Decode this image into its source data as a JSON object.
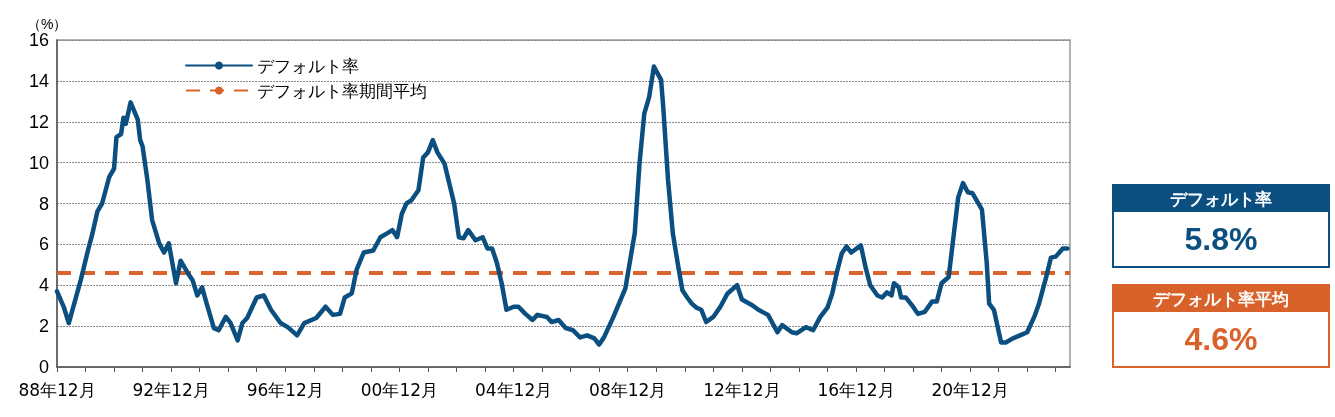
{
  "chart_data": {
    "type": "line",
    "ylabel": "（%）",
    "x": [
      "1988-12",
      "1989-03",
      "1989-05",
      "1989-10",
      "1990-01",
      "1990-03",
      "1990-05",
      "1990-07",
      "1990-10",
      "1990-12",
      "1991-01",
      "1991-03",
      "1991-04",
      "1991-05",
      "1991-07",
      "1991-10",
      "1991-11",
      "1991-12",
      "1992-02",
      "1992-04",
      "1992-07",
      "1992-09",
      "1992-11",
      "1993-02",
      "1993-04",
      "1993-07",
      "1993-09",
      "1993-11",
      "1994-01",
      "1994-03",
      "1994-06",
      "1994-08",
      "1994-11",
      "1995-01",
      "1995-04",
      "1995-06",
      "1995-08",
      "1995-12",
      "1996-03",
      "1996-06",
      "1996-10",
      "1997-01",
      "1997-05",
      "1997-08",
      "1998-01",
      "1998-05",
      "1998-08",
      "1998-11",
      "1999-01",
      "1999-04",
      "1999-06",
      "1999-09",
      "2000-01",
      "2000-04",
      "2000-07",
      "2000-09",
      "2000-11",
      "2001-01",
      "2001-03",
      "2001-05",
      "2001-08",
      "2001-10",
      "2001-12",
      "2002-02",
      "2002-04",
      "2002-07",
      "2002-11",
      "2003-01",
      "2003-03",
      "2003-05",
      "2003-08",
      "2003-11",
      "2004-01",
      "2004-03",
      "2004-05",
      "2004-07",
      "2004-09",
      "2004-12",
      "2005-02",
      "2005-05",
      "2005-08",
      "2005-10",
      "2006-02",
      "2006-04",
      "2006-07",
      "2006-10",
      "2007-01",
      "2007-04",
      "2007-07",
      "2007-10",
      "2007-12",
      "2008-02",
      "2008-06",
      "2008-11",
      "2009-03",
      "2009-05",
      "2009-07",
      "2009-09",
      "2009-11",
      "2010-02",
      "2010-03",
      "2010-05",
      "2010-07",
      "2010-09",
      "2010-11",
      "2011-01",
      "2011-03",
      "2011-05",
      "2011-07",
      "2011-09",
      "2011-12",
      "2012-03",
      "2012-06",
      "2012-10",
      "2012-12",
      "2013-04",
      "2013-07",
      "2013-11",
      "2014-03",
      "2014-05",
      "2014-09",
      "2014-11",
      "2015-03",
      "2015-06",
      "2015-09",
      "2015-12",
      "2016-02",
      "2016-04",
      "2016-06",
      "2016-08",
      "2016-10",
      "2017-02",
      "2017-04",
      "2017-06",
      "2017-09",
      "2017-11",
      "2018-01",
      "2018-03",
      "2018-04",
      "2018-06",
      "2018-07",
      "2018-09",
      "2018-12",
      "2019-02",
      "2019-05",
      "2019-08",
      "2019-10",
      "2019-12",
      "2020-03",
      "2020-05",
      "2020-07",
      "2020-09",
      "2020-11",
      "2021-01",
      "2021-05",
      "2021-07",
      "2021-08",
      "2021-10",
      "2022-01",
      "2022-03",
      "2022-06",
      "2022-09",
      "2022-12",
      "2023-03",
      "2023-05",
      "2023-08",
      "2023-10",
      "2023-12",
      "2024-03",
      "2024-05"
    ],
    "series": [
      {
        "name": "デフォルト率",
        "color": "#0b4f80",
        "values": [
          3.7,
          2.9,
          2.15,
          4.25,
          5.7,
          6.55,
          7.6,
          8.0,
          9.3,
          9.7,
          11.25,
          11.4,
          12.2,
          11.9,
          12.95,
          12.1,
          11.1,
          10.8,
          9.15,
          7.2,
          6.05,
          5.6,
          6.05,
          4.1,
          5.2,
          4.6,
          4.25,
          3.5,
          3.9,
          3.1,
          1.9,
          1.8,
          2.45,
          2.15,
          1.3,
          2.15,
          2.4,
          3.4,
          3.5,
          2.8,
          2.15,
          1.95,
          1.55,
          2.15,
          2.4,
          2.95,
          2.55,
          2.6,
          3.4,
          3.6,
          4.75,
          5.6,
          5.7,
          6.35,
          6.55,
          6.7,
          6.35,
          7.5,
          8.0,
          8.15,
          8.65,
          10.25,
          10.5,
          11.1,
          10.5,
          9.95,
          8.0,
          6.35,
          6.3,
          6.7,
          6.2,
          6.35,
          5.8,
          5.8,
          5.1,
          4.1,
          2.8,
          2.95,
          2.95,
          2.6,
          2.3,
          2.55,
          2.45,
          2.2,
          2.3,
          1.9,
          1.8,
          1.45,
          1.55,
          1.4,
          1.1,
          1.45,
          2.45,
          3.85,
          6.55,
          9.95,
          12.4,
          13.2,
          14.7,
          14.05,
          12.7,
          9.15,
          6.55,
          5.1,
          3.75,
          3.4,
          3.1,
          2.9,
          2.8,
          2.2,
          2.45,
          2.95,
          3.6,
          4.0,
          3.3,
          3.05,
          2.8,
          2.55,
          1.7,
          2.05,
          1.7,
          1.65,
          1.95,
          1.8,
          2.45,
          2.9,
          3.6,
          4.65,
          5.55,
          5.9,
          5.6,
          5.95,
          4.9,
          4.0,
          3.5,
          3.4,
          3.65,
          3.5,
          4.1,
          3.9,
          3.4,
          3.4,
          2.95,
          2.6,
          2.7,
          3.2,
          3.2,
          4.1,
          4.4,
          6.35,
          8.3,
          9.0,
          8.55,
          8.5,
          7.7,
          5.1,
          3.1,
          2.8,
          1.2,
          1.2,
          1.4,
          1.55,
          1.7,
          2.45,
          3.1,
          4.4,
          5.35,
          5.4,
          5.8,
          5.8
        ]
      }
    ],
    "ref_lines": [
      {
        "axis": "y",
        "value": 4.6,
        "label": "デフォルト率期間平均",
        "color": "#d9622b",
        "line_style": "dashed"
      }
    ],
    "xlim": [
      "1988-12",
      "2024-06"
    ],
    "xticks": [
      {
        "value": "1988-12",
        "label": "88年12月"
      },
      {
        "value": "1989-12",
        "label": null
      },
      {
        "value": "1990-12",
        "label": null
      },
      {
        "value": "1991-12",
        "label": null
      },
      {
        "value": "1992-12",
        "label": "92年12月"
      },
      {
        "value": "1993-12",
        "label": null
      },
      {
        "value": "1994-12",
        "label": null
      },
      {
        "value": "1995-12",
        "label": null
      },
      {
        "value": "1996-12",
        "label": "96年12月"
      },
      {
        "value": "1997-12",
        "label": null
      },
      {
        "value": "1998-12",
        "label": null
      },
      {
        "value": "1999-12",
        "label": null
      },
      {
        "value": "2000-12",
        "label": "00年12月"
      },
      {
        "value": "2001-12",
        "label": null
      },
      {
        "value": "2002-12",
        "label": null
      },
      {
        "value": "2003-12",
        "label": null
      },
      {
        "value": "2004-12",
        "label": "04年12月"
      },
      {
        "value": "2005-12",
        "label": null
      },
      {
        "value": "2006-12",
        "label": null
      },
      {
        "value": "2007-12",
        "label": null
      },
      {
        "value": "2008-12",
        "label": "08年12月"
      },
      {
        "value": "2009-12",
        "label": null
      },
      {
        "value": "2010-12",
        "label": null
      },
      {
        "value": "2011-12",
        "label": null
      },
      {
        "value": "2012-12",
        "label": "12年12月"
      },
      {
        "value": "2013-12",
        "label": null
      },
      {
        "value": "2014-12",
        "label": null
      },
      {
        "value": "2015-12",
        "label": null
      },
      {
        "value": "2016-12",
        "label": "16年12月"
      },
      {
        "value": "2017-12",
        "label": null
      },
      {
        "value": "2018-12",
        "label": null
      },
      {
        "value": "2019-12",
        "label": null
      },
      {
        "value": "2020-12",
        "label": "20年12月"
      },
      {
        "value": "2021-12",
        "label": null
      },
      {
        "value": "2022-12",
        "label": null
      },
      {
        "value": "2023-12",
        "label": null
      }
    ],
    "ylim": [
      0,
      16
    ],
    "yticks": [
      0,
      2,
      4,
      6,
      8,
      10,
      12,
      14,
      16
    ],
    "grid": "y",
    "legend": "top left",
    "marker": "none",
    "line_style": "solid",
    "annotations": [
      "デフォルト率",
      "5.8%",
      "デフォルト率平均",
      "4.6%"
    ]
  }
}
